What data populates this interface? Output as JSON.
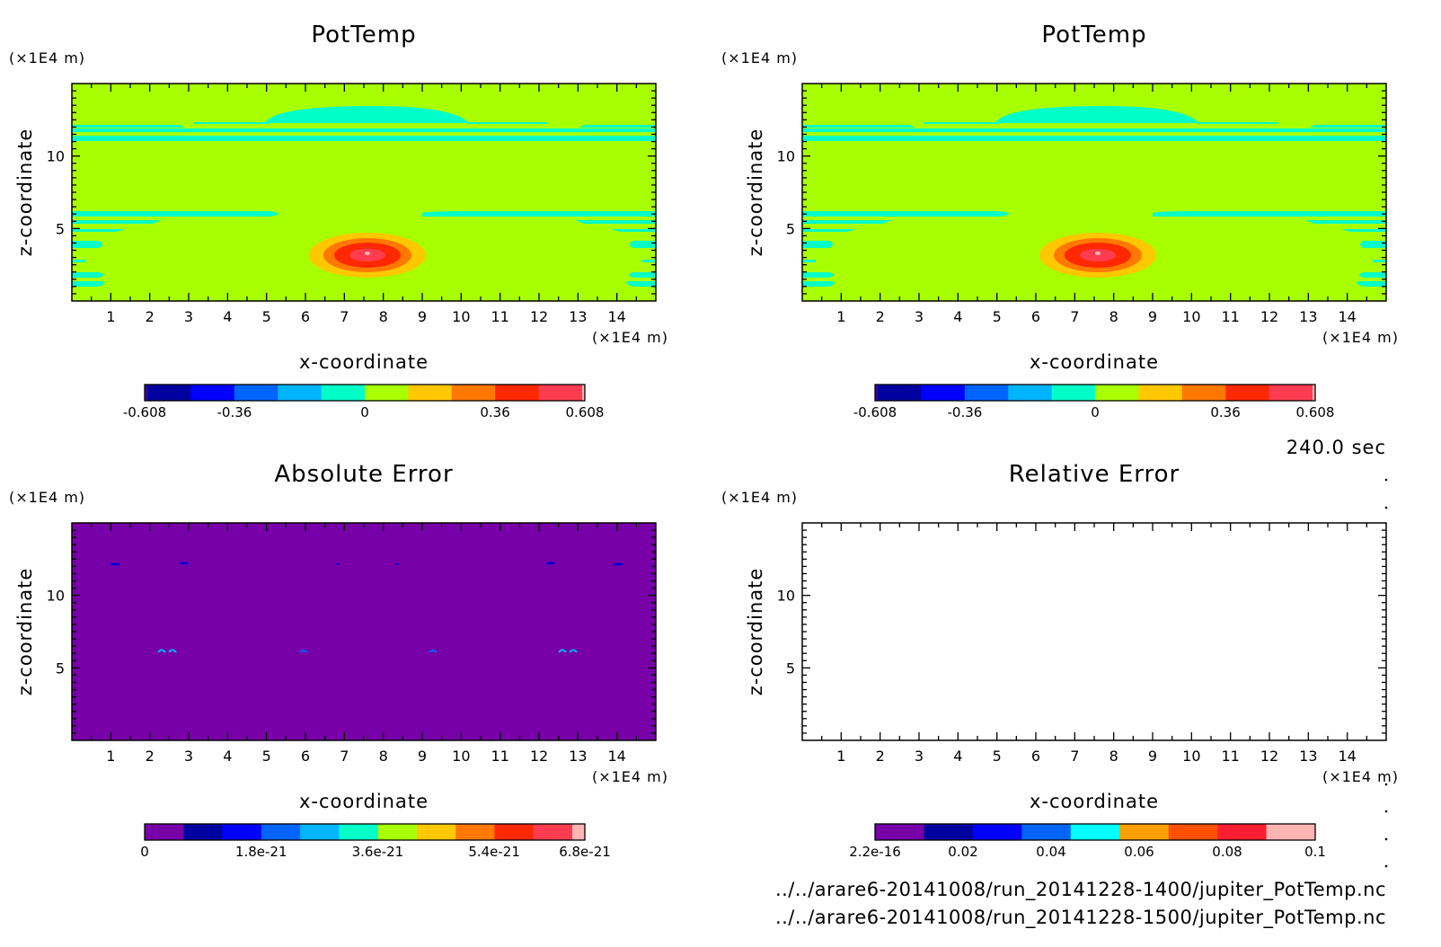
{
  "time_label": "240.0 sec",
  "files": [
    "../../arare6-20141008/run_20141228-1400/jupiter_PotTemp.nc",
    "../../arare6-20141008/run_20141228-1500/jupiter_PotTemp.nc"
  ],
  "colors": {
    "background": "#a8ff00",
    "band": "#00ffc8",
    "error_fill": "#7800a8"
  },
  "chart_data": [
    {
      "type": "heatmap",
      "title": "PotTemp",
      "xlabel": "x-coordinate",
      "ylabel": "z-coordinate",
      "x_unit": "(×1E4 m)",
      "y_unit": "(×1E4 m)",
      "xlim": [
        0,
        15
      ],
      "ylim": [
        0,
        15
      ],
      "x_ticks": [
        "1",
        "2",
        "3",
        "4",
        "5",
        "6",
        "7",
        "8",
        "9",
        "10",
        "11",
        "12",
        "13",
        "14"
      ],
      "y_ticks": [
        "5",
        "10"
      ],
      "colorbar": {
        "labels": [
          "-0.608",
          "-0.36",
          "0",
          "0.36",
          "0.608"
        ],
        "colors": [
          "#3c00a0",
          "#0000a0",
          "#0000ff",
          "#0064ff",
          "#00b4ff",
          "#00ffc8",
          "#a8ff00",
          "#ffc800",
          "#ff7800",
          "#ff2800",
          "#ff3c50",
          "#ffb4b4"
        ]
      },
      "anomaly": {
        "x_center": 7.6,
        "z_center": 3.2,
        "peak": 0.608
      }
    },
    {
      "type": "heatmap",
      "title": "PotTemp",
      "xlabel": "x-coordinate",
      "ylabel": "z-coordinate",
      "x_unit": "(×1E4 m)",
      "y_unit": "(×1E4 m)",
      "xlim": [
        0,
        15
      ],
      "ylim": [
        0,
        15
      ],
      "x_ticks": [
        "1",
        "2",
        "3",
        "4",
        "5",
        "6",
        "7",
        "8",
        "9",
        "10",
        "11",
        "12",
        "13",
        "14"
      ],
      "y_ticks": [
        "5",
        "10"
      ],
      "colorbar": {
        "labels": [
          "-0.608",
          "-0.36",
          "0",
          "0.36",
          "0.608"
        ],
        "colors": [
          "#3c00a0",
          "#0000a0",
          "#0000ff",
          "#0064ff",
          "#00b4ff",
          "#00ffc8",
          "#a8ff00",
          "#ffc800",
          "#ff7800",
          "#ff2800",
          "#ff3c50",
          "#ffb4b4"
        ]
      },
      "anomaly": {
        "x_center": 7.6,
        "z_center": 3.2,
        "peak": 0.608
      }
    },
    {
      "type": "heatmap",
      "title": "Absolute Error",
      "xlabel": "x-coordinate",
      "ylabel": "z-coordinate",
      "x_unit": "(×1E4 m)",
      "y_unit": "(×1E4 m)",
      "xlim": [
        0,
        15
      ],
      "ylim": [
        0,
        15
      ],
      "x_ticks": [
        "1",
        "2",
        "3",
        "4",
        "5",
        "6",
        "7",
        "8",
        "9",
        "10",
        "11",
        "12",
        "13",
        "14"
      ],
      "y_ticks": [
        "5",
        "10"
      ],
      "colorbar": {
        "labels": [
          "0",
          "1.8e-21",
          "3.6e-21",
          "5.4e-21",
          "6.8e-21"
        ],
        "colors": [
          "#7800a8",
          "#0000a0",
          "#0000ff",
          "#0064ff",
          "#00b4ff",
          "#00ffc8",
          "#a8ff00",
          "#ffc800",
          "#ff7800",
          "#ff2800",
          "#ff3c50",
          "#ffb4b4"
        ]
      }
    },
    {
      "type": "heatmap",
      "title": "Relative Error",
      "xlabel": "x-coordinate",
      "ylabel": "z-coordinate",
      "x_unit": "(×1E4 m)",
      "y_unit": "(×1E4 m)",
      "xlim": [
        0,
        15
      ],
      "ylim": [
        0,
        15
      ],
      "x_ticks": [
        "1",
        "2",
        "3",
        "4",
        "5",
        "6",
        "7",
        "8",
        "9",
        "10",
        "11",
        "12",
        "13",
        "14"
      ],
      "y_ticks": [
        "5",
        "10"
      ],
      "colorbar": {
        "labels": [
          "2.2e-16",
          "0.02",
          "0.04",
          "0.06",
          "0.08",
          "0.1"
        ],
        "colors": [
          "#7800a8",
          "#0000a0",
          "#0000ff",
          "#0064ff",
          "#00ffff",
          "#ffa000",
          "#ff5000",
          "#ff1e32",
          "#ffb4b4"
        ]
      }
    }
  ]
}
